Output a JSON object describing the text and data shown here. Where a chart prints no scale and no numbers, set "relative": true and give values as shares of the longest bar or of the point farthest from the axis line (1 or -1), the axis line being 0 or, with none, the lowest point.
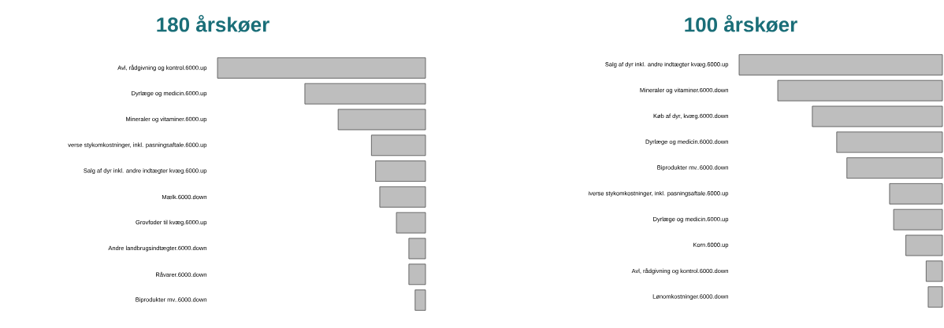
{
  "chart_data": [
    {
      "type": "bar",
      "title": "180 årskøer",
      "orientation": "horizontal",
      "relative": true,
      "color": "#bebebe",
      "categories": [
        "Avl, rådgivning og kontrol.6000.up",
        "Dyrlæge og medicin.6000.up",
        "Mineraler og vitaminer.6000.up",
        "verse stykomkostninger, inkl. pasningsaftale.6000.up",
        "Salg af dyr inkl. andre indtægter kvæg.6000.up",
        "Mælk.6000.down",
        "Grovfoder til kvæg.6000.up",
        "Andre landbrugsindtægter.6000.down",
        "Råvarer.6000.down",
        "Biprodukter mv..6000.down"
      ],
      "values": [
        -1,
        -0.58,
        -0.42,
        -0.26,
        -0.24,
        -0.22,
        -0.14,
        -0.08,
        -0.08,
        -0.05
      ]
    },
    {
      "type": "bar",
      "title": "100 årskøer",
      "orientation": "horizontal",
      "relative": true,
      "color": "#bebebe",
      "categories": [
        "Salg af dyr inkl. andre indtægter kvæg.6000.up",
        "Mineraler og vitaminer.6000.down",
        "Køb af dyr, kvæg.6000.down",
        "Dyrlæge og medicin.6000.down",
        "Biprodukter mv..6000.down",
        "iverse stykomkostninger, inkl. pasningsaftale.6000.up",
        "Dyrlæge og medicin.6000.up",
        "Korn.6000.up",
        "Avl, rådgivning og kontrol.6000.down",
        "Lønomkostninger.6000.down"
      ],
      "values": [
        -1,
        -0.81,
        -0.64,
        -0.52,
        -0.47,
        -0.26,
        -0.24,
        -0.18,
        -0.08,
        -0.07
      ]
    }
  ]
}
